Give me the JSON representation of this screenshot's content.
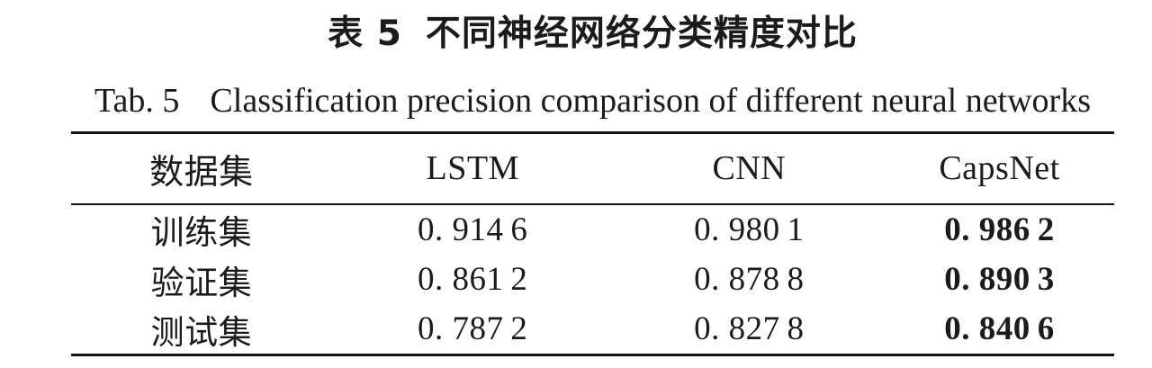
{
  "page": {
    "background": "#ffffff",
    "text_color": "#1b1b1b",
    "rule_color": "#121212"
  },
  "caption_zh": {
    "label": "表 5",
    "title": "不同神经网络分类精度对比"
  },
  "caption_en": {
    "label": "Tab. 5",
    "title": "Classification precision comparison of different neural networks"
  },
  "table": {
    "columns": [
      "数据集",
      "LSTM",
      "CNN",
      "CapsNet"
    ],
    "bold_column": "CapsNet",
    "rows": [
      [
        "训练集",
        "0. 914 6",
        "0. 980 1",
        "0. 986 2"
      ],
      [
        "验证集",
        "0. 861 2",
        "0. 878 8",
        "0. 890 3"
      ],
      [
        "测试集",
        "0. 787 2",
        "0. 827 8",
        "0. 840 6"
      ]
    ],
    "values_numeric": {
      "LSTM": [
        0.9146,
        0.8612,
        0.7872
      ],
      "CNN": [
        0.9801,
        0.8788,
        0.8278
      ],
      "CapsNet": [
        0.9862,
        0.8903,
        0.8406
      ]
    }
  }
}
